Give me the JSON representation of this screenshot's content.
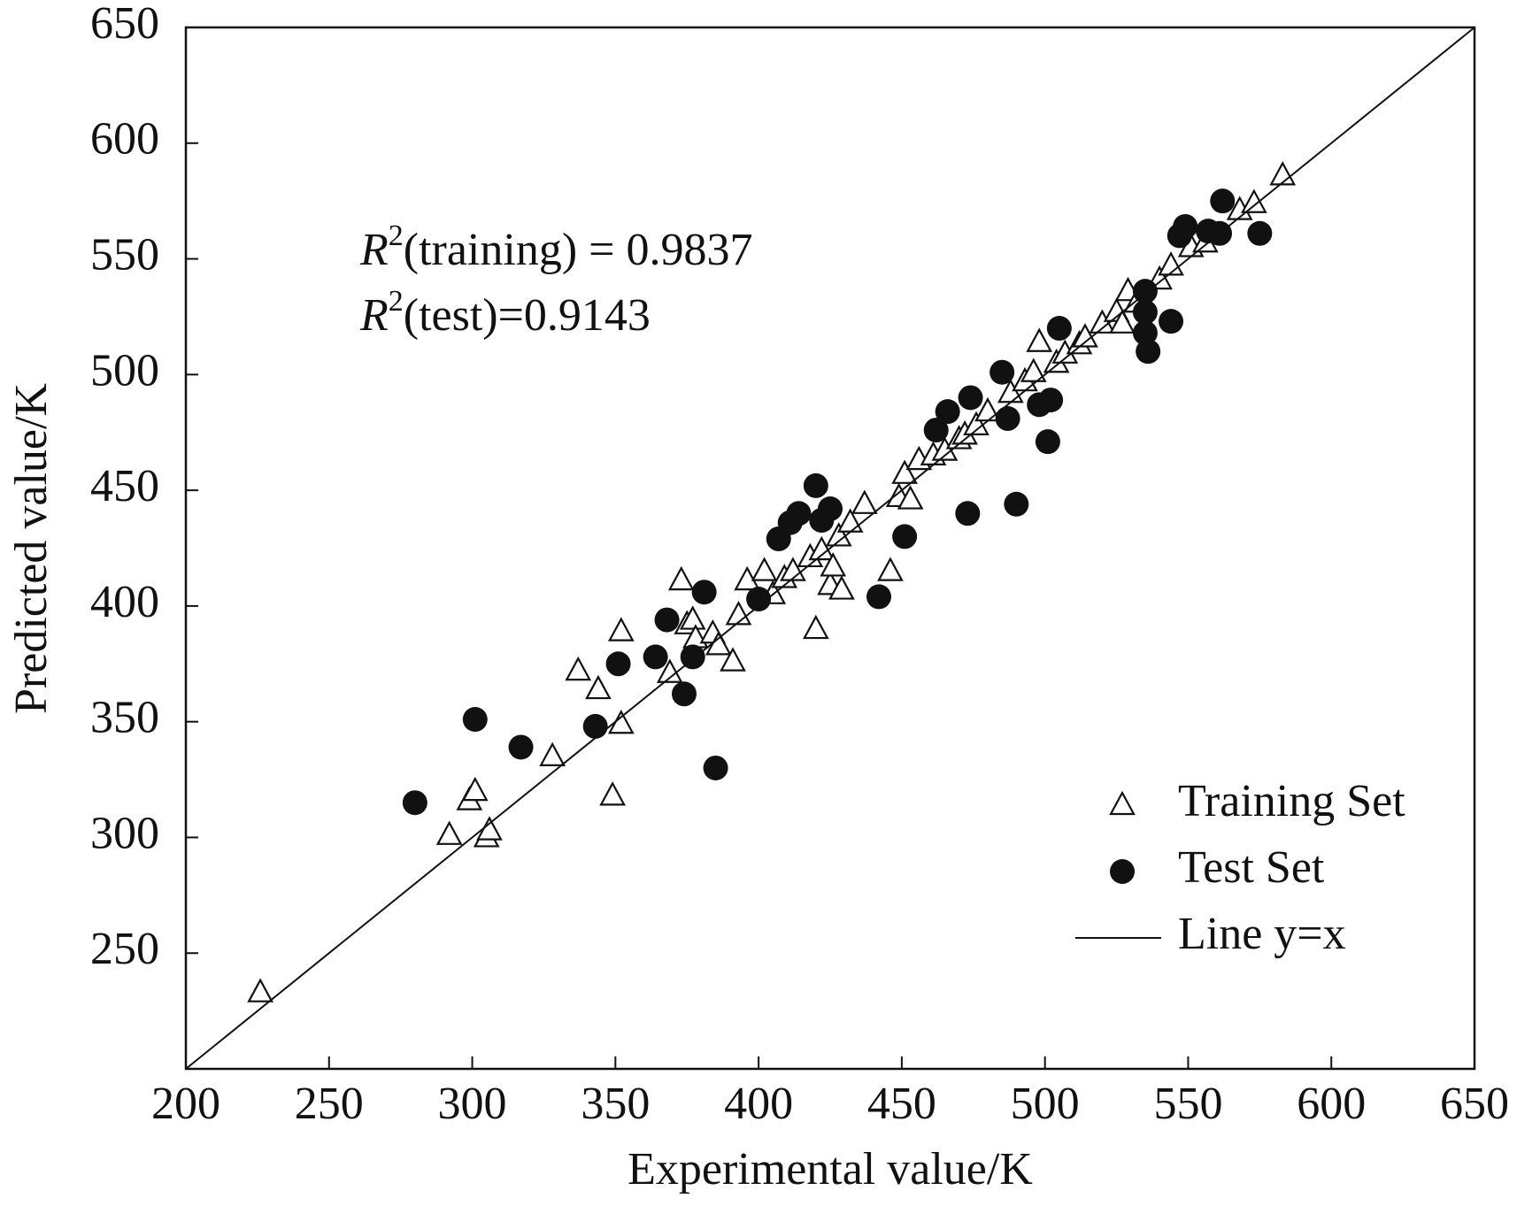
{
  "chart_data": {
    "type": "scatter",
    "xlabel": "Experimental value/K",
    "ylabel": "Predicted value/K",
    "xlim": [
      200,
      650
    ],
    "ylim": [
      200,
      650
    ],
    "xticks": [
      200,
      250,
      300,
      350,
      400,
      450,
      500,
      550,
      600,
      650
    ],
    "yticks": [
      250,
      300,
      350,
      400,
      450,
      500,
      550,
      600,
      650
    ],
    "annotations": [
      {
        "symbol": "R",
        "sup": "2",
        "text": "(training) = 0.9837"
      },
      {
        "symbol": "R",
        "sup": "2",
        "text": "(test)=0.9143"
      }
    ],
    "legend_position": "lower right",
    "series": [
      {
        "name": "Training Set",
        "marker": "triangle",
        "color": "#111111",
        "x": [
          226,
          292,
          299,
          301,
          305,
          306,
          328,
          337,
          344,
          349,
          352,
          352,
          369,
          373,
          375,
          377,
          378,
          384,
          386,
          391,
          393,
          396,
          402,
          405,
          409,
          412,
          418,
          420,
          422,
          425,
          426,
          428,
          429,
          432,
          437,
          446,
          449,
          451,
          453,
          456,
          461,
          465,
          470,
          472,
          476,
          480,
          488,
          493,
          496,
          498,
          504,
          507,
          512,
          514,
          520,
          525,
          527,
          529,
          532,
          540,
          544,
          551,
          556,
          568,
          573,
          583
        ],
        "values": [
          233,
          301,
          316,
          320,
          300,
          303,
          335,
          372,
          364,
          318,
          349,
          389,
          371,
          411,
          392,
          394,
          386,
          388,
          383,
          376,
          396,
          411,
          415,
          405,
          412,
          415,
          421,
          390,
          424,
          409,
          417,
          430,
          407,
          436,
          444,
          415,
          447,
          457,
          446,
          463,
          465,
          467,
          472,
          474,
          478,
          484,
          492,
          497,
          501,
          514,
          505,
          509,
          513,
          516,
          522,
          527,
          522,
          536,
          531,
          541,
          547,
          555,
          557,
          571,
          574,
          586
        ]
      },
      {
        "name": "Test Set",
        "marker": "circle",
        "color": "#111111",
        "x": [
          280,
          301,
          317,
          343,
          351,
          364,
          368,
          374,
          377,
          381,
          385,
          400,
          407,
          411,
          414,
          420,
          422,
          425,
          442,
          451,
          462,
          466,
          473,
          474,
          485,
          487,
          490,
          498,
          502,
          501,
          505,
          535,
          535,
          535,
          536,
          544,
          547,
          549,
          557,
          561,
          562,
          575
        ],
        "values": [
          315,
          351,
          339,
          348,
          375,
          378,
          394,
          362,
          378,
          406,
          330,
          403,
          429,
          436,
          440,
          452,
          437,
          442,
          404,
          430,
          476,
          484,
          440,
          490,
          501,
          481,
          444,
          487,
          489,
          471,
          520,
          536,
          527,
          518,
          510,
          523,
          560,
          564,
          562,
          561,
          575,
          561
        ]
      },
      {
        "name": "Line y=x",
        "marker": "line",
        "color": "#111111",
        "x": [
          200,
          650
        ],
        "values": [
          200,
          650
        ]
      }
    ]
  }
}
